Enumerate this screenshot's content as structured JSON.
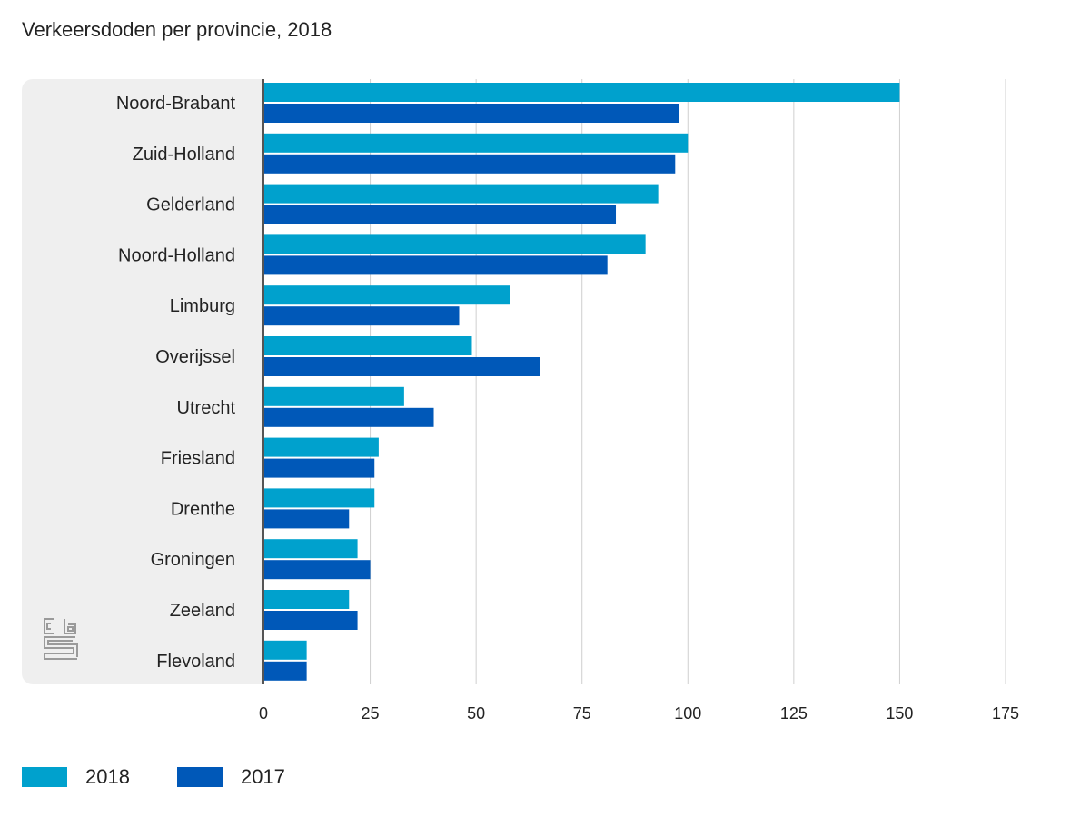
{
  "chart_data": {
    "type": "bar",
    "orientation": "horizontal",
    "title": "Verkeersdoden per provincie, 2018",
    "categories": [
      "Noord-Brabant",
      "Zuid-Holland",
      "Gelderland",
      "Noord-Holland",
      "Limburg",
      "Overijssel",
      "Utrecht",
      "Friesland",
      "Drenthe",
      "Groningen",
      "Zeeland",
      "Flevoland"
    ],
    "series": [
      {
        "name": "2018",
        "color": "#00a1cd",
        "values": [
          150,
          100,
          93,
          90,
          58,
          49,
          33,
          27,
          26,
          22,
          20,
          10
        ]
      },
      {
        "name": "2017",
        "color": "#0058b8",
        "values": [
          98,
          97,
          83,
          81,
          46,
          65,
          40,
          26,
          20,
          25,
          22,
          10
        ]
      }
    ],
    "xticks": [
      "0",
      "25",
      "50",
      "75",
      "100",
      "125",
      "150",
      "175"
    ],
    "xlim": [
      0,
      175
    ],
    "xlabel": "",
    "ylabel": "",
    "grid": true,
    "legend_position": "bottom-left"
  },
  "logo": {
    "name": "cbs-logo",
    "text": "cbs"
  }
}
